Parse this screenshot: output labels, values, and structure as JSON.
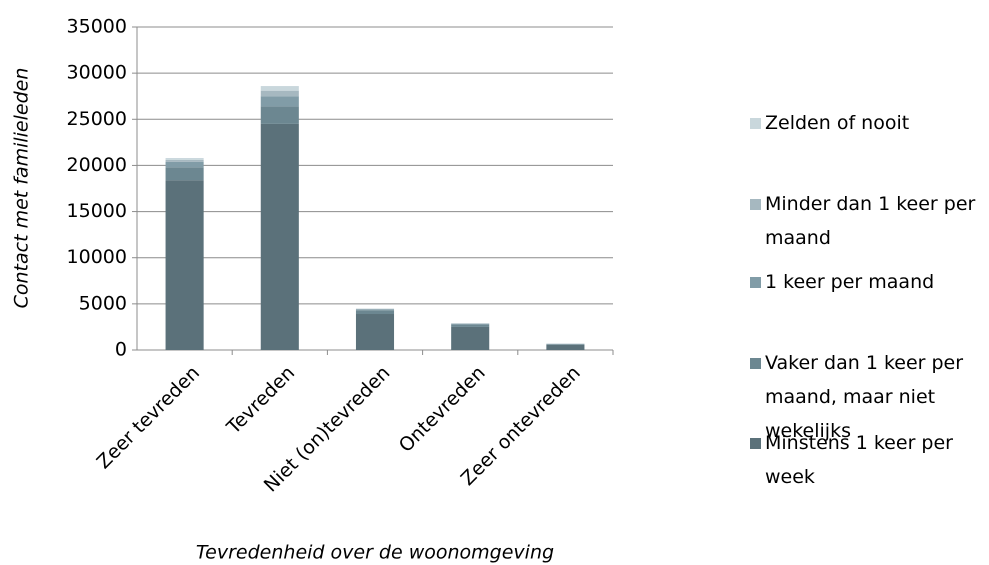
{
  "chart_data": {
    "type": "stacked_bar",
    "x_label": "Tevredenheid over de woonomgeving",
    "y_label": "Contact met familieleden",
    "categories": [
      "Zeer tevreden",
      "Tevreden",
      "Niet (on)tevreden",
      "Ontevreden",
      "Zeer ontevreden"
    ],
    "series": [
      {
        "name": "Minstens 1 keer per week",
        "color": "#5b717a",
        "values": [
          18400,
          24500,
          3900,
          2500,
          550
        ]
      },
      {
        "name": "Vaker dan 1 keer per maand, maar niet wekelijks",
        "color": "#6c8791",
        "values": [
          1400,
          1900,
          400,
          250,
          80
        ]
      },
      {
        "name": "1 keer per maand",
        "color": "#819ca7",
        "values": [
          600,
          1100,
          100,
          100,
          40
        ]
      },
      {
        "name": "Minder dan 1 keer per maand",
        "color": "#a6b8c0",
        "values": [
          200,
          600,
          50,
          30,
          15
        ]
      },
      {
        "name": "Zelden of nooit",
        "color": "#c9d7dc",
        "values": [
          200,
          500,
          50,
          20,
          15
        ]
      }
    ],
    "ylim": [
      0,
      35000
    ],
    "yticks": [
      0,
      5000,
      10000,
      15000,
      20000,
      25000,
      30000,
      35000
    ],
    "grid": true
  }
}
